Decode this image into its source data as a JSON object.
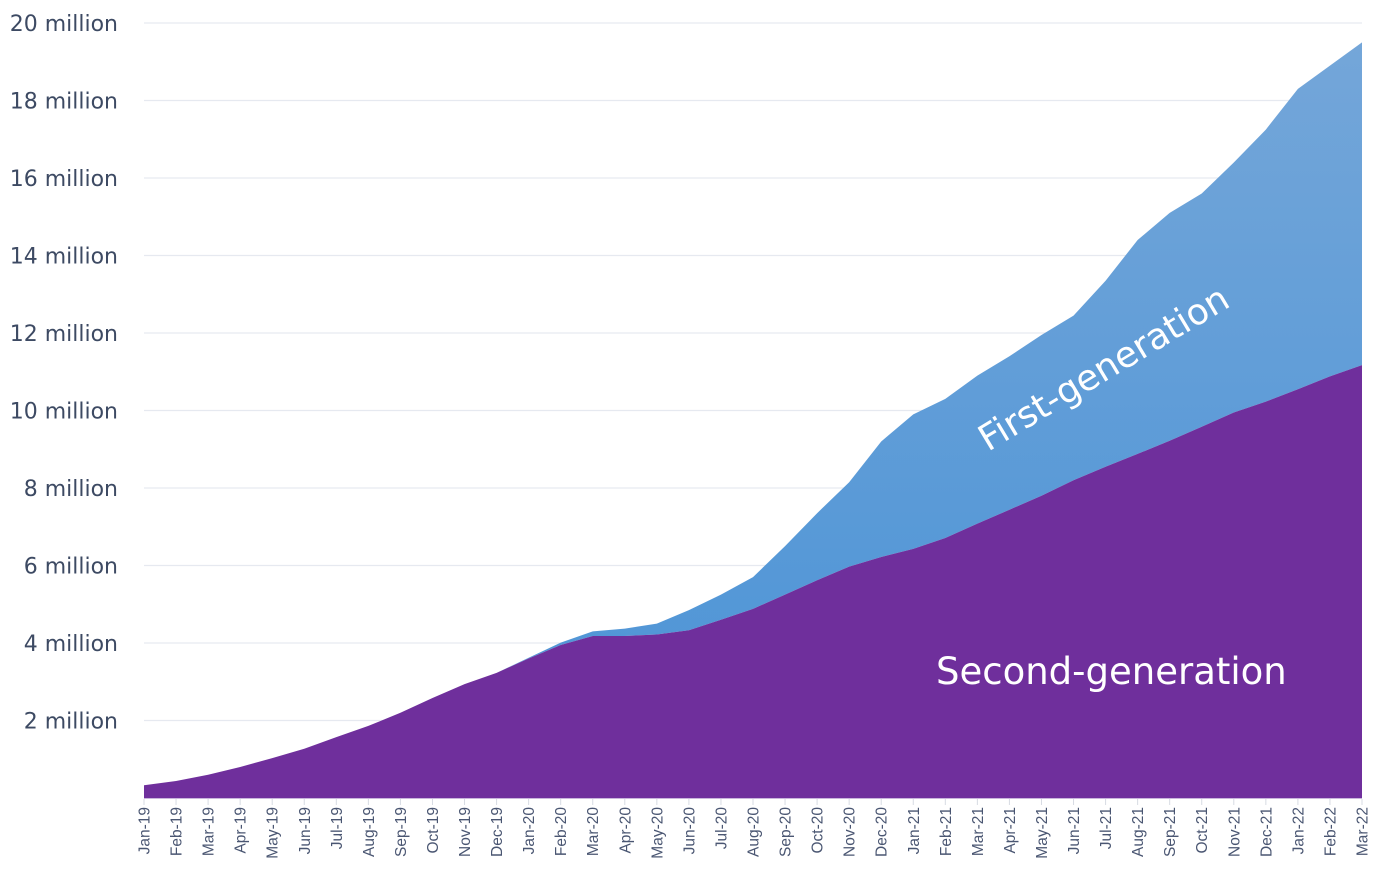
{
  "chart_data": {
    "type": "area",
    "stacked": true,
    "title": "",
    "xlabel": "",
    "ylabel": "",
    "ylim": [
      0,
      20000000
    ],
    "grid": true,
    "legend": "inline labels",
    "y_ticks": [
      "2 million",
      "4 million",
      "6 million",
      "8 million",
      "10 million",
      "12 million",
      "14 million",
      "16 million",
      "18 million",
      "20 million"
    ],
    "y_tick_values": [
      2,
      4,
      6,
      8,
      10,
      12,
      14,
      16,
      18,
      20
    ],
    "categories": [
      "Jan-19",
      "Feb-19",
      "Mar-19",
      "Apr-19",
      "May-19",
      "Jun-19",
      "Jul-19",
      "Aug-19",
      "Sep-19",
      "Oct-19",
      "Nov-19",
      "Dec-19",
      "Jan-20",
      "Feb-20",
      "Mar-20",
      "Apr-20",
      "May-20",
      "Jun-20",
      "Jul-20",
      "Aug-20",
      "Sep-20",
      "Oct-20",
      "Nov-20",
      "Dec-20",
      "Jan-21",
      "Feb-21",
      "Mar-21",
      "Apr-21",
      "May-21",
      "Jun-21",
      "Jul-21",
      "Aug-21",
      "Sep-21",
      "Oct-21",
      "Nov-21",
      "Dec-21",
      "Jan-22",
      "Feb-22",
      "Mar-22"
    ],
    "units": "million",
    "series": [
      {
        "name": "Second-generation",
        "color": "#6f2f9c",
        "values": [
          0.33,
          0.44,
          0.6,
          0.8,
          1.03,
          1.27,
          1.57,
          1.86,
          2.2,
          2.58,
          2.94,
          3.23,
          3.6,
          3.95,
          4.18,
          4.18,
          4.22,
          4.33,
          4.6,
          4.88,
          5.25,
          5.62,
          5.97,
          6.22,
          6.43,
          6.71,
          7.08,
          7.44,
          7.8,
          8.2,
          8.55,
          8.88,
          9.22,
          9.58,
          9.95,
          10.23,
          10.55,
          10.88,
          11.17
        ]
      },
      {
        "name": "First-generation",
        "color": "#5596d6",
        "values": [
          0,
          0,
          0,
          0,
          0,
          0,
          0,
          0,
          0,
          0,
          0,
          0,
          0.02,
          0.06,
          0.12,
          0.19,
          0.28,
          0.52,
          0.65,
          0.82,
          1.25,
          1.73,
          2.18,
          2.98,
          3.47,
          3.59,
          3.82,
          3.96,
          4.15,
          4.25,
          4.8,
          5.52,
          5.88,
          6.02,
          6.45,
          7.02,
          7.75,
          8.02,
          8.33
        ]
      }
    ],
    "totals": [
      0.33,
      0.44,
      0.6,
      0.8,
      1.03,
      1.27,
      1.57,
      1.86,
      2.2,
      2.58,
      2.94,
      3.23,
      3.62,
      4.01,
      4.3,
      4.37,
      4.5,
      4.85,
      5.25,
      5.7,
      6.5,
      7.35,
      8.15,
      9.2,
      9.9,
      10.3,
      10.9,
      11.4,
      11.95,
      12.45,
      13.35,
      14.4,
      15.1,
      15.6,
      16.4,
      17.25,
      18.3,
      18.9,
      19.5
    ],
    "annotations": [
      {
        "text": "First-generation",
        "rotation_deg": -30,
        "color": "#ffffff"
      },
      {
        "text": "Second-generation",
        "rotation_deg": 0,
        "color": "#ffffff"
      }
    ]
  },
  "labels": {
    "first_gen": "First-generation",
    "second_gen": "Second-generation"
  },
  "colors": {
    "second_gen": "#6f2f9c",
    "first_gen_top": "#74a6d9",
    "first_gen_bottom": "#4a93d6",
    "grid": "#e6e9f0",
    "axis_text": "#3d4a63",
    "tick": "#d7dbe3"
  }
}
